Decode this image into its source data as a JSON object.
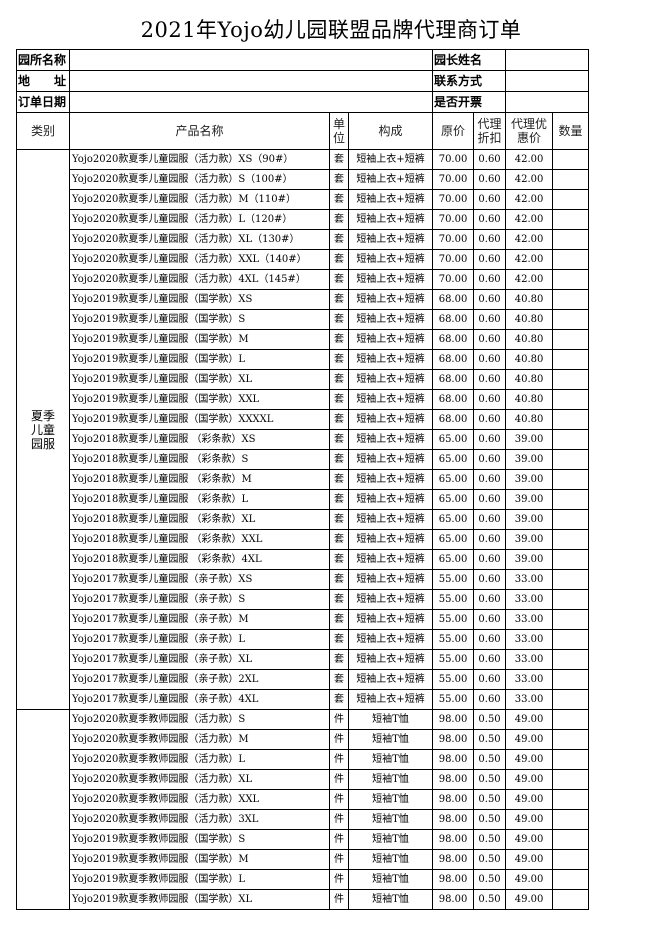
{
  "title": "2021年Yojo幼儿园联盟品牌代理商订单",
  "info": [
    {
      "label": "园所名称",
      "label2": "园长姓名"
    },
    {
      "label": "地　　址",
      "label2": "联系方式"
    },
    {
      "label": "订单日期",
      "label2": "是否开票"
    }
  ],
  "table": {
    "headers": [
      "类别",
      "产品名称",
      "单位",
      "构成",
      "原价",
      "代理折扣",
      "代理优惠价",
      "数量"
    ],
    "category": "夏季儿童园服",
    "rows": [
      [
        "Yojo2020款夏季儿童园服（活力款）XS（90#）",
        "套",
        "短袖上衣+短裤",
        "70.00",
        "0.60",
        "42.00"
      ],
      [
        "Yojo2020款夏季儿童园服（活力款）S（100#）",
        "套",
        "短袖上衣+短裤",
        "70.00",
        "0.60",
        "42.00"
      ],
      [
        "Yojo2020款夏季儿童园服（活力款）M（110#）",
        "套",
        "短袖上衣+短裤",
        "70.00",
        "0.60",
        "42.00"
      ],
      [
        "Yojo2020款夏季儿童园服（活力款）L（120#）",
        "套",
        "短袖上衣+短裤",
        "70.00",
        "0.60",
        "42.00"
      ],
      [
        "Yojo2020款夏季儿童园服（活力款）XL（130#）",
        "套",
        "短袖上衣+短裤",
        "70.00",
        "0.60",
        "42.00"
      ],
      [
        "Yojo2020款夏季儿童园服（活力款）XXL（140#）",
        "套",
        "短袖上衣+短裤",
        "70.00",
        "0.60",
        "42.00"
      ],
      [
        "Yojo2020款夏季儿童园服（活力款）4XL（145#）",
        "套",
        "短袖上衣+短裤",
        "70.00",
        "0.60",
        "42.00"
      ],
      [
        "Yojo2019款夏季儿童园服（国学款）XS",
        "套",
        "短袖上衣+短裤",
        "68.00",
        "0.60",
        "40.80"
      ],
      [
        "Yojo2019款夏季儿童园服（国学款）S",
        "套",
        "短袖上衣+短裤",
        "68.00",
        "0.60",
        "40.80"
      ],
      [
        "Yojo2019款夏季儿童园服（国学款）M",
        "套",
        "短袖上衣+短裤",
        "68.00",
        "0.60",
        "40.80"
      ],
      [
        "Yojo2019款夏季儿童园服（国学款）L",
        "套",
        "短袖上衣+短裤",
        "68.00",
        "0.60",
        "40.80"
      ],
      [
        "Yojo2019款夏季儿童园服（国学款）XL",
        "套",
        "短袖上衣+短裤",
        "68.00",
        "0.60",
        "40.80"
      ],
      [
        "Yojo2019款夏季儿童园服（国学款）XXL",
        "套",
        "短袖上衣+短裤",
        "68.00",
        "0.60",
        "40.80"
      ],
      [
        "Yojo2019款夏季儿童园服（国学款）XXXXL",
        "套",
        "短袖上衣+短裤",
        "68.00",
        "0.60",
        "40.80"
      ],
      [
        "Yojo2018款夏季儿童园服 （彩条款）XS",
        "套",
        "短袖上衣+短裤",
        "65.00",
        "0.60",
        "39.00"
      ],
      [
        "Yojo2018款夏季儿童园服 （彩条款）S",
        "套",
        "短袖上衣+短裤",
        "65.00",
        "0.60",
        "39.00"
      ],
      [
        "Yojo2018款夏季儿童园服 （彩条款）M",
        "套",
        "短袖上衣+短裤",
        "65.00",
        "0.60",
        "39.00"
      ],
      [
        "Yojo2018款夏季儿童园服 （彩条款）L",
        "套",
        "短袖上衣+短裤",
        "65.00",
        "0.60",
        "39.00"
      ],
      [
        "Yojo2018款夏季儿童园服 （彩条款）XL",
        "套",
        "短袖上衣+短裤",
        "65.00",
        "0.60",
        "39.00"
      ],
      [
        "Yojo2018款夏季儿童园服 （彩条款）XXL",
        "套",
        "短袖上衣+短裤",
        "65.00",
        "0.60",
        "39.00"
      ],
      [
        "Yojo2018款夏季儿童园服 （彩条款）4XL",
        "套",
        "短袖上衣+短裤",
        "65.00",
        "0.60",
        "39.00"
      ],
      [
        "Yojo2017款夏季儿童园服（亲子款）XS",
        "套",
        "短袖上衣+短裤",
        "55.00",
        "0.60",
        "33.00"
      ],
      [
        "Yojo2017款夏季儿童园服（亲子款）S",
        "套",
        "短袖上衣+短裤",
        "55.00",
        "0.60",
        "33.00"
      ],
      [
        "Yojo2017款夏季儿童园服（亲子款）M",
        "套",
        "短袖上衣+短裤",
        "55.00",
        "0.60",
        "33.00"
      ],
      [
        "Yojo2017款夏季儿童园服（亲子款）L",
        "套",
        "短袖上衣+短裤",
        "55.00",
        "0.60",
        "33.00"
      ],
      [
        "Yojo2017款夏季儿童园服（亲子款）XL",
        "套",
        "短袖上衣+短裤",
        "55.00",
        "0.60",
        "33.00"
      ],
      [
        "Yojo2017款夏季儿童园服（亲子款）2XL",
        "套",
        "短袖上衣+短裤",
        "55.00",
        "0.60",
        "33.00"
      ],
      [
        "Yojo2017款夏季儿童园服（亲子款）4XL",
        "套",
        "短袖上衣+短裤",
        "55.00",
        "0.60",
        "33.00"
      ],
      [
        "Yojo2020款夏季教师园服（活力款）S",
        "件",
        "短袖T恤",
        "98.00",
        "0.50",
        "49.00"
      ],
      [
        "Yojo2020款夏季教师园服（活力款）M",
        "件",
        "短袖T恤",
        "98.00",
        "0.50",
        "49.00"
      ],
      [
        "Yojo2020款夏季教师园服（活力款）L",
        "件",
        "短袖T恤",
        "98.00",
        "0.50",
        "49.00"
      ],
      [
        "Yojo2020款夏季教师园服（活力款）XL",
        "件",
        "短袖T恤",
        "98.00",
        "0.50",
        "49.00"
      ],
      [
        "Yojo2020款夏季教师园服（活力款）XXL",
        "件",
        "短袖T恤",
        "98.00",
        "0.50",
        "49.00"
      ],
      [
        "Yojo2020款夏季教师园服（活力款）3XL",
        "件",
        "短袖T恤",
        "98.00",
        "0.50",
        "49.00"
      ],
      [
        "Yojo2019款夏季教师园服（国学款）S",
        "件",
        "短袖T恤",
        "98.00",
        "0.50",
        "49.00"
      ],
      [
        "Yojo2019款夏季教师园服（国学款）M",
        "件",
        "短袖T恤",
        "98.00",
        "0.50",
        "49.00"
      ],
      [
        "Yojo2019款夏季教师园服（国学款）L",
        "件",
        "短袖T恤",
        "98.00",
        "0.50",
        "49.00"
      ],
      [
        "Yojo2019款夏季教师园服（国学款）XL",
        "件",
        "短袖T恤",
        "98.00",
        "0.50",
        "49.00"
      ]
    ]
  }
}
